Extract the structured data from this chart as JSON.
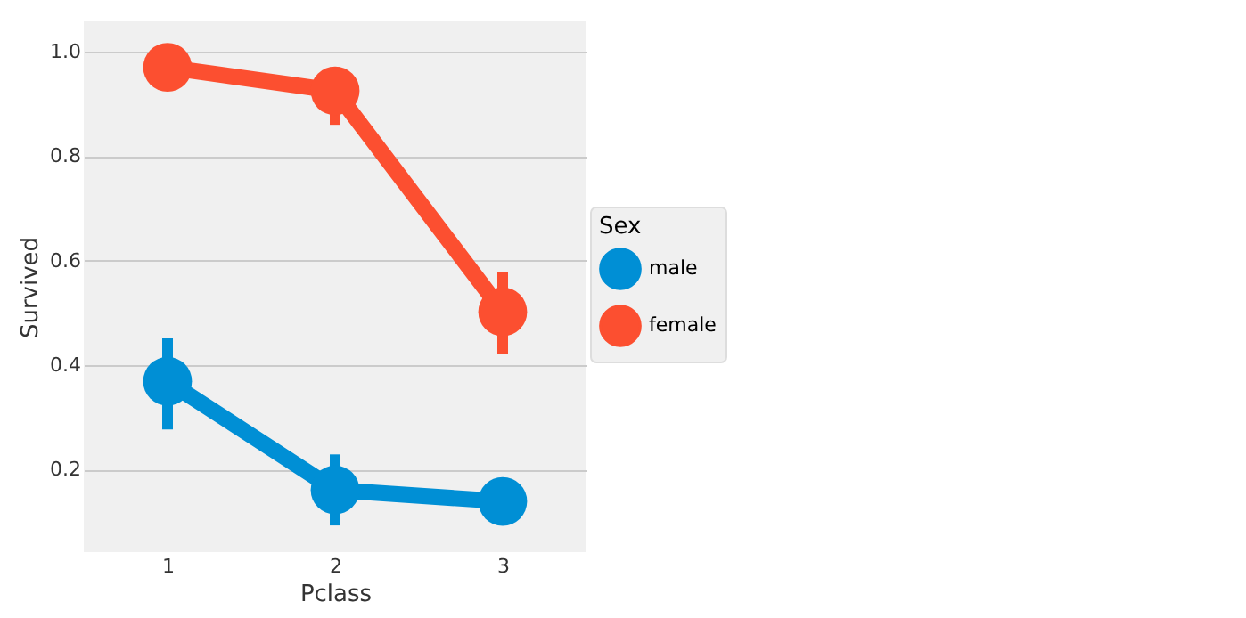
{
  "chart_data": {
    "type": "line",
    "xlabel": "Pclass",
    "ylabel": "Survived",
    "legend_title": "Sex",
    "categories": [
      "1",
      "2",
      "3"
    ],
    "series": [
      {
        "name": "male",
        "color": "#008fd5",
        "values": [
          0.369,
          0.161,
          0.139
        ],
        "errors": [
          [
            0.277,
            0.451
          ],
          [
            0.093,
            0.229
          ],
          null
        ]
      },
      {
        "name": "female",
        "color": "#fc4f30",
        "values": [
          0.97,
          0.925,
          0.502
        ],
        "errors": [
          null,
          [
            0.86,
            0.97
          ],
          [
            0.422,
            0.579
          ]
        ]
      }
    ],
    "ylim": [
      0.042,
      1.058
    ],
    "yticks": [
      {
        "value": 0.2,
        "label": "0.2"
      },
      {
        "value": 0.4,
        "label": "0.4"
      },
      {
        "value": 0.6,
        "label": "0.6"
      },
      {
        "value": 0.8,
        "label": "0.8"
      },
      {
        "value": 1,
        "label": "1.0"
      }
    ],
    "grid": "y",
    "legend": "right",
    "marker": "circle",
    "line_style": "solid"
  }
}
